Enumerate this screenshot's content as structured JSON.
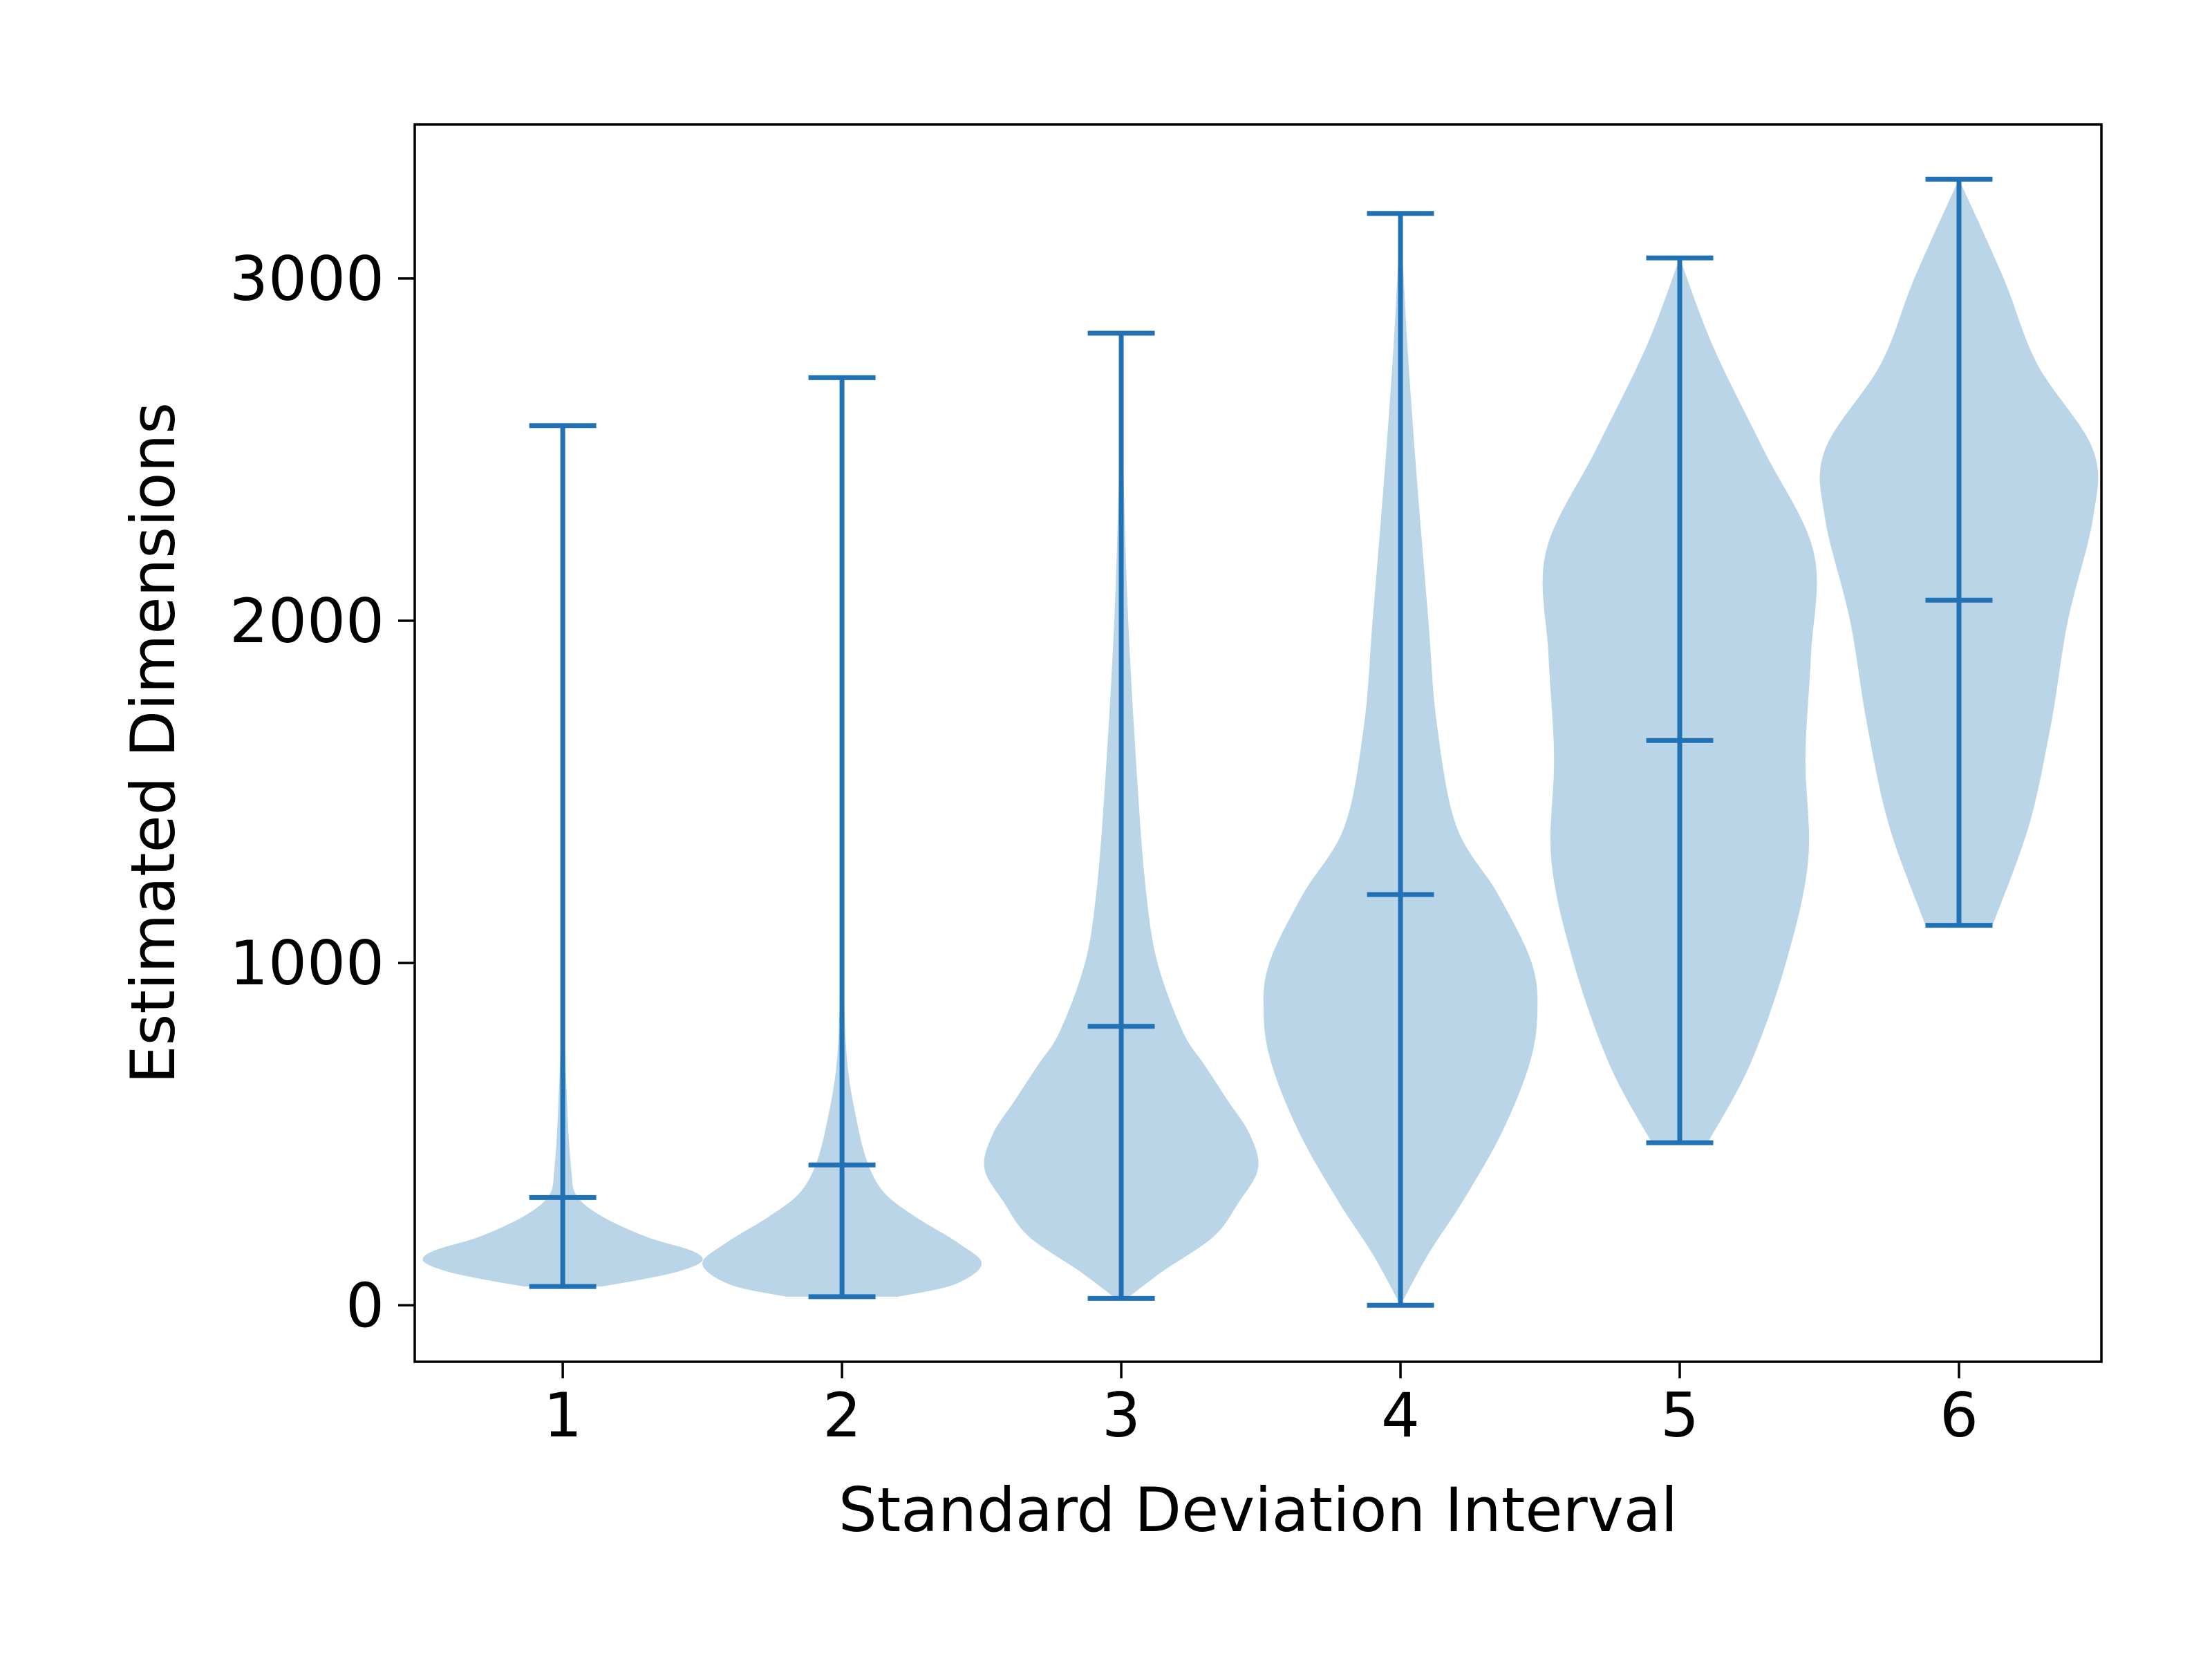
{
  "chart_data": {
    "type": "violin",
    "title": "",
    "xlabel": "Standard Deviation Interval",
    "ylabel": "Estimated Dimensions",
    "categories": [
      "1",
      "2",
      "3",
      "4",
      "5",
      "6"
    ],
    "x_ticks": [
      1,
      2,
      3,
      4,
      5,
      6
    ],
    "y_ticks": [
      0,
      1000,
      2000,
      3000
    ],
    "y_tick_labels": [
      "0",
      "1000",
      "2000",
      "3000"
    ],
    "xlim": [
      0.47,
      6.51
    ],
    "ylim": [
      -165,
      3450
    ],
    "grid": false,
    "colors": {
      "body": "#bad5e8",
      "lines": "#2171b5"
    },
    "series": [
      {
        "name": "1",
        "min": 55,
        "median": 315,
        "max": 2570,
        "density": [
          [
            55,
            0.14
          ],
          [
            75,
            0.28
          ],
          [
            100,
            0.42
          ],
          [
            130,
            0.5
          ],
          [
            160,
            0.46
          ],
          [
            200,
            0.3
          ],
          [
            260,
            0.14
          ],
          [
            320,
            0.05
          ],
          [
            400,
            0.03
          ],
          [
            600,
            0.015
          ],
          [
            900,
            0.005
          ],
          [
            1500,
            0.002
          ],
          [
            2570,
            0.0
          ]
        ]
      },
      {
        "name": "2",
        "min": 25,
        "median": 410,
        "max": 2710,
        "density": [
          [
            25,
            0.2
          ],
          [
            60,
            0.4
          ],
          [
            120,
            0.5
          ],
          [
            180,
            0.42
          ],
          [
            260,
            0.26
          ],
          [
            330,
            0.15
          ],
          [
            420,
            0.09
          ],
          [
            550,
            0.05
          ],
          [
            700,
            0.02
          ],
          [
            900,
            0.008
          ],
          [
            1300,
            0.003
          ],
          [
            2000,
            0.001
          ],
          [
            2710,
            0.0
          ]
        ]
      },
      {
        "name": "3",
        "min": 20,
        "median": 815,
        "max": 2840,
        "density": [
          [
            20,
            0.02
          ],
          [
            100,
            0.15
          ],
          [
            200,
            0.33
          ],
          [
            300,
            0.42
          ],
          [
            400,
            0.49
          ],
          [
            500,
            0.46
          ],
          [
            600,
            0.38
          ],
          [
            700,
            0.3
          ],
          [
            800,
            0.22
          ],
          [
            1000,
            0.13
          ],
          [
            1200,
            0.09
          ],
          [
            1500,
            0.06
          ],
          [
            2000,
            0.025
          ],
          [
            2500,
            0.006
          ],
          [
            2840,
            0.0
          ]
        ]
      },
      {
        "name": "4",
        "min": 0,
        "median": 1200,
        "max": 3190,
        "density": [
          [
            0,
            0.0
          ],
          [
            150,
            0.1
          ],
          [
            300,
            0.22
          ],
          [
            500,
            0.36
          ],
          [
            700,
            0.46
          ],
          [
            850,
            0.49
          ],
          [
            1000,
            0.47
          ],
          [
            1200,
            0.35
          ],
          [
            1400,
            0.2
          ],
          [
            1700,
            0.13
          ],
          [
            2000,
            0.1
          ],
          [
            2400,
            0.06
          ],
          [
            2800,
            0.025
          ],
          [
            3190,
            0.0
          ]
        ]
      },
      {
        "name": "5",
        "min": 475,
        "median": 1650,
        "max": 3060,
        "density": [
          [
            475,
            0.1
          ],
          [
            700,
            0.25
          ],
          [
            1000,
            0.38
          ],
          [
            1300,
            0.46
          ],
          [
            1600,
            0.45
          ],
          [
            1900,
            0.47
          ],
          [
            2200,
            0.48
          ],
          [
            2500,
            0.3
          ],
          [
            2800,
            0.12
          ],
          [
            3060,
            0.0
          ]
        ]
      },
      {
        "name": "6",
        "min": 1110,
        "median": 2060,
        "max": 3290,
        "density": [
          [
            1110,
            0.12
          ],
          [
            1400,
            0.25
          ],
          [
            1700,
            0.33
          ],
          [
            2000,
            0.39
          ],
          [
            2300,
            0.48
          ],
          [
            2500,
            0.48
          ],
          [
            2750,
            0.28
          ],
          [
            3000,
            0.16
          ],
          [
            3290,
            0.0
          ]
        ]
      }
    ]
  }
}
